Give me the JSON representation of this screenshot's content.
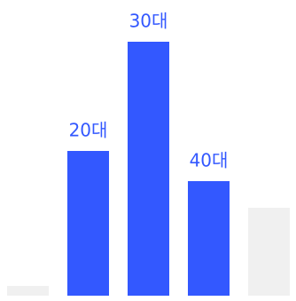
{
  "chart_data": {
    "type": "bar",
    "categories": [
      null,
      "20대",
      "30대",
      "40대",
      null
    ],
    "values": [
      11,
      163,
      286,
      129,
      99
    ],
    "colors": [
      "#f0f0f0",
      "#3358ff",
      "#3358ff",
      "#3358ff",
      "#f0f0f0"
    ],
    "label_color": "#3358ff",
    "ylim": [
      0,
      300
    ]
  }
}
